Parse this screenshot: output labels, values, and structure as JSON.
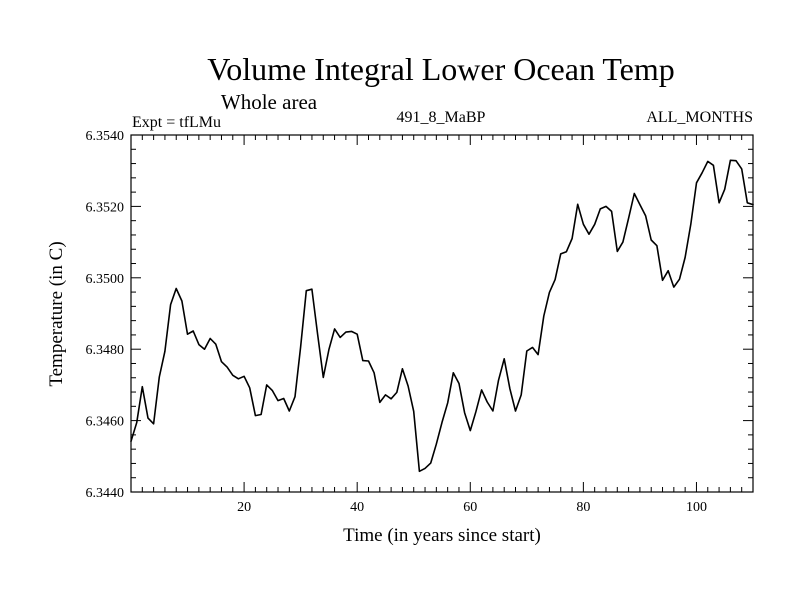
{
  "chart_data": {
    "type": "line",
    "title": "Volume Integral Lower Ocean Temp",
    "subtitle": "Whole area",
    "experiment_label": "Expt = tfLMu",
    "run_label": "491_8_MaBP",
    "months_label": "ALL_MONTHS",
    "xlabel": "Time (in years since start)",
    "ylabel": "Temperature (in C)",
    "xlim": [
      0,
      110
    ],
    "ylim": [
      6.344,
      6.354
    ],
    "x_tick_values": [
      20,
      40,
      60,
      80,
      100
    ],
    "x_tick_labels": [
      "20",
      "40",
      "60",
      "80",
      "100"
    ],
    "y_tick_values": [
      6.344,
      6.346,
      6.348,
      6.35,
      6.352,
      6.354
    ],
    "y_tick_labels": [
      "6.3440",
      "6.3460",
      "6.3480",
      "6.3500",
      "6.3520",
      "6.3540"
    ],
    "grid": false,
    "series": [
      {
        "name": "Temperature",
        "color": "#000000",
        "x": [
          0,
          1,
          2,
          3,
          4,
          5,
          6,
          7,
          8,
          9,
          10,
          11,
          12,
          13,
          14,
          15,
          16,
          17,
          18,
          19,
          20,
          21,
          22,
          23,
          24,
          25,
          26,
          27,
          28,
          29,
          30,
          31,
          32,
          33,
          34,
          35,
          36,
          37,
          38,
          39,
          40,
          41,
          42,
          43,
          44,
          45,
          46,
          47,
          48,
          49,
          50,
          51,
          52,
          53,
          54,
          55,
          56,
          57,
          58,
          59,
          60,
          61,
          62,
          63,
          64,
          65,
          66,
          67,
          68,
          69,
          70,
          71,
          72,
          73,
          74,
          75,
          76,
          77,
          78,
          79,
          80,
          81,
          82,
          83,
          84,
          85,
          86,
          87,
          88,
          89,
          90,
          91,
          92,
          93,
          94,
          95,
          96,
          97,
          98,
          99,
          100,
          101,
          102,
          103,
          104,
          105,
          106,
          107,
          108,
          109,
          110
        ],
        "values": [
          6.34542,
          6.34594,
          6.34695,
          6.34607,
          6.34591,
          6.34722,
          6.34794,
          6.34925,
          6.3497,
          6.34935,
          6.34842,
          6.34851,
          6.34813,
          6.348,
          6.3483,
          6.34814,
          6.34765,
          6.3475,
          6.34727,
          6.34717,
          6.34724,
          6.34692,
          6.34614,
          6.34617,
          6.347,
          6.34684,
          6.34656,
          6.34662,
          6.34627,
          6.34667,
          6.34806,
          6.34964,
          6.34968,
          6.34842,
          6.34721,
          6.34799,
          6.34857,
          6.34833,
          6.34848,
          6.3485,
          6.34842,
          6.34768,
          6.34767,
          6.34734,
          6.34651,
          6.34672,
          6.34661,
          6.34679,
          6.34745,
          6.34697,
          6.34626,
          6.34458,
          6.34466,
          6.34481,
          6.34534,
          6.34595,
          6.3465,
          6.34734,
          6.34704,
          6.34622,
          6.34572,
          6.34625,
          6.34686,
          6.34652,
          6.34627,
          6.34713,
          6.34773,
          6.34689,
          6.34627,
          6.34672,
          6.34795,
          6.34805,
          6.34785,
          6.34893,
          6.34959,
          6.34995,
          6.35067,
          6.35073,
          6.3511,
          6.35206,
          6.3515,
          6.35122,
          6.3515,
          6.35193,
          6.352,
          6.35186,
          6.35074,
          6.351,
          6.35167,
          6.35236,
          6.35205,
          6.35174,
          6.35106,
          6.3509,
          6.34993,
          6.3502,
          6.34974,
          6.34996,
          6.35057,
          6.3515,
          6.35266,
          6.35294,
          6.35326,
          6.35315,
          6.3521,
          6.35248,
          6.35329,
          6.35328,
          6.35305,
          6.3521,
          6.35205
        ]
      }
    ]
  }
}
